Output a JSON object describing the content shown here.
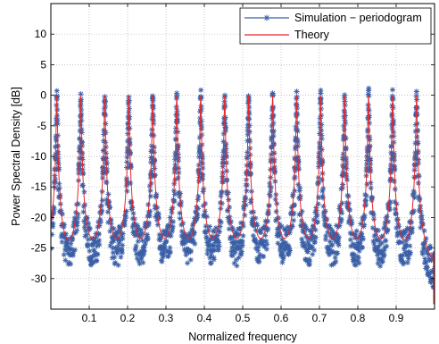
{
  "chart_data": {
    "type": "line",
    "title": "",
    "xlabel": "Normalized frequency",
    "ylabel": "Power Spectral Density [dB]",
    "xlim": [
      0,
      1
    ],
    "ylim": [
      -35,
      15
    ],
    "xticks": [
      0.1,
      0.2,
      0.3,
      0.4,
      0.5,
      0.6,
      0.7,
      0.8,
      0.9
    ],
    "xtick_labels": [
      "0.1",
      "0.2",
      "0.3",
      "0.4",
      "0.5",
      "0.6",
      "0.7",
      "0.8",
      "0.9"
    ],
    "yticks": [
      10,
      5,
      0,
      -5,
      -10,
      -15,
      -20,
      -25,
      -30
    ],
    "ytick_labels": [
      "10",
      "5",
      "0",
      "-5",
      "-10",
      "-15",
      "-20",
      "-25",
      "-30"
    ],
    "grid": true,
    "legend_position": "top-right",
    "peak_frequencies": [
      0.0156,
      0.0781,
      0.1406,
      0.2031,
      0.2656,
      0.3281,
      0.3906,
      0.4531,
      0.5156,
      0.5781,
      0.6406,
      0.7031,
      0.7656,
      0.8281,
      0.8906,
      0.9531
    ],
    "peak_level_db": 0,
    "floor_level_db": -30,
    "series": [
      {
        "name": "Simulation − periodogram",
        "color": "#3a5fa6",
        "marker": "asterisk"
      },
      {
        "name": "Theory",
        "color": "#e8262b",
        "marker": "none"
      }
    ]
  }
}
